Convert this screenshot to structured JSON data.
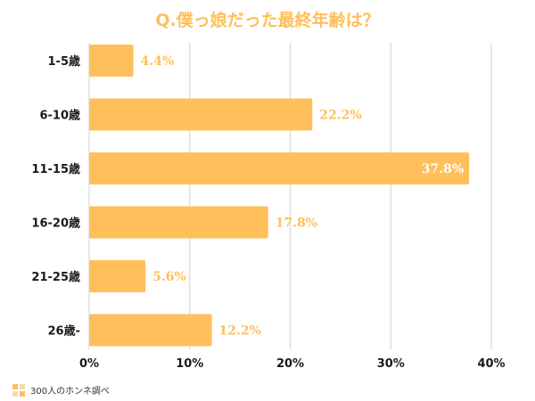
{
  "chart_data": {
    "type": "bar",
    "orientation": "horizontal",
    "title": "Q.僕っ娘だった最終年齢は？",
    "categories": [
      "1-5歳",
      "6-10歳",
      "11-15歳",
      "16-20歳",
      "21-25歳",
      "26歳-"
    ],
    "values": [
      4.4,
      22.2,
      37.8,
      17.8,
      5.6,
      12.2
    ],
    "value_labels": [
      "4.4%",
      "22.2%",
      "37.8%",
      "17.8%",
      "5.6%",
      "12.2%"
    ],
    "xlim": [
      0,
      40
    ],
    "x_ticks": [
      "0%",
      "10%",
      "20%",
      "30%",
      "40%"
    ],
    "grid": true,
    "xlabel": "",
    "ylabel": ""
  },
  "source_note": "300人のホンネ調べ",
  "colors": {
    "bar": "#FFBF5A",
    "label_outside": "#FFBF5A",
    "label_inside": "#ffffff",
    "title": "#FFBF5A",
    "grid": "#d9d9d9",
    "axis_text": "#1a1a1a"
  }
}
